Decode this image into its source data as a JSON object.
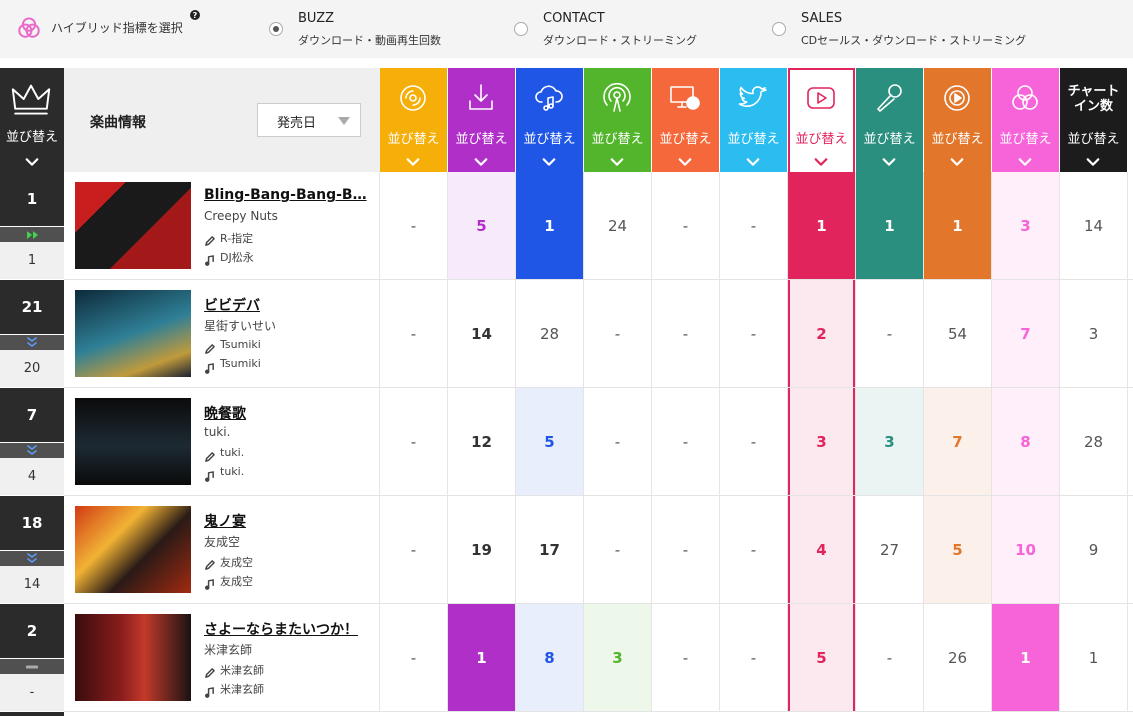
{
  "header": {
    "hybrid_label": "ハイブリッド指標を選択",
    "help": "?",
    "options": [
      {
        "name": "BUZZ",
        "desc": "ダウンロード・動画再生回数",
        "selected": true
      },
      {
        "name": "CONTACT",
        "desc": "ダウンロード・ストリーミング",
        "selected": false
      },
      {
        "name": "SALES",
        "desc": "CDセールス・ダウンロード・ストリーミング",
        "selected": false
      }
    ]
  },
  "table": {
    "rank_sort": "並び替え",
    "info_label": "楽曲情報",
    "sort_select": "発売日",
    "columns": [
      {
        "label": "並び替え",
        "color": "#f6ae08",
        "ranking": true
      },
      {
        "label": "並び替え",
        "color": "#b12fc9",
        "ranking": true
      },
      {
        "label": "並び替え",
        "color": "#1f56e6",
        "ranking": true
      },
      {
        "label": "並び替え",
        "color": "#53b52b",
        "ranking": true
      },
      {
        "label": "並び替え",
        "color": "#f4683b",
        "ranking": true
      },
      {
        "label": "並び替え",
        "color": "#2bbdf0",
        "ranking": true
      },
      {
        "label": "並び替え",
        "color": "#e2245c",
        "ranking": true,
        "selected": true
      },
      {
        "label": "並び替え",
        "color": "#2a8f7e",
        "ranking": true
      },
      {
        "label": "並び替え",
        "color": "#e2762a",
        "ranking": true
      },
      {
        "label": "並び替え",
        "color": "#f763d8",
        "ranking": true
      },
      {
        "name": "チャートイン数",
        "label": "並び替え",
        "color": "#1c1c1c",
        "ranking": false
      }
    ],
    "rows": [
      {
        "rank": 1,
        "trend": "up",
        "previous": 1,
        "title": "Bling-Bang-Bang-B…",
        "artist": "Creepy Nuts",
        "lyricist": "R-指定",
        "composer": "DJ松永",
        "values": [
          "-",
          5,
          1,
          24,
          "-",
          "-",
          1,
          1,
          1,
          3,
          14
        ]
      },
      {
        "rank": 21,
        "trend": "down",
        "previous": 20,
        "title": "ビビデバ",
        "artist": "星街すいせい",
        "lyricist": "Tsumiki",
        "composer": "Tsumiki",
        "values": [
          "-",
          14,
          28,
          "-",
          "-",
          "-",
          2,
          "-",
          54,
          7,
          3
        ]
      },
      {
        "rank": 7,
        "trend": "down",
        "previous": 4,
        "title": "晩餐歌",
        "artist": "tuki.",
        "lyricist": "tuki.",
        "composer": "tuki.",
        "values": [
          "-",
          12,
          5,
          "-",
          "-",
          "-",
          3,
          3,
          7,
          8,
          28
        ]
      },
      {
        "rank": 18,
        "trend": "down",
        "previous": 14,
        "title": "鬼ノ宴",
        "artist": "友成空",
        "lyricist": "友成空",
        "composer": "友成空",
        "values": [
          "-",
          19,
          17,
          "-",
          "-",
          "-",
          4,
          27,
          5,
          10,
          9
        ]
      },
      {
        "rank": 2,
        "trend": "none",
        "previous": "-",
        "title": "さよーならまたいつか！",
        "artist": "米津玄師",
        "lyricist": "米津玄師",
        "composer": "米津玄師",
        "values": [
          "-",
          1,
          8,
          3,
          "-",
          "-",
          5,
          "-",
          26,
          1,
          1
        ]
      }
    ]
  }
}
